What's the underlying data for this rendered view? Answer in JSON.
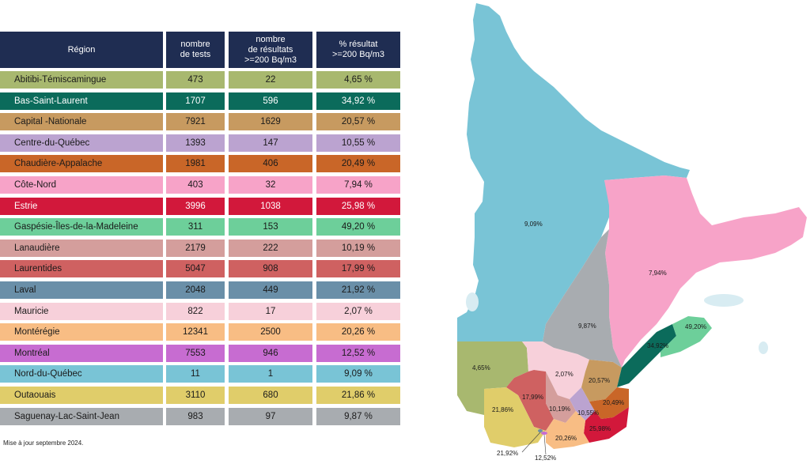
{
  "table": {
    "headers": [
      "Région",
      "nombre\nde tests",
      "nombre\nde résultats\n>=200 Bq/m3",
      "% résultat\n>=200 Bq/m3"
    ],
    "rows": [
      {
        "region": "Abitibi-Témiscamingue",
        "tests": "473",
        "results": "22",
        "pct": "4,65 %",
        "color": "#a8b86f"
      },
      {
        "region": "Bas-Saint-Laurent",
        "tests": "1707",
        "results": "596",
        "pct": "34,92 %",
        "color": "#0b6b5b",
        "light": true
      },
      {
        "region": "Capital -Nationale",
        "tests": "7921",
        "results": "1629",
        "pct": "20,57 %",
        "color": "#c79a60"
      },
      {
        "region": "Centre-du-Québec",
        "tests": "1393",
        "results": "147",
        "pct": "10,55 %",
        "color": "#bba3d0"
      },
      {
        "region": "Chaudière-Appalache",
        "tests": "1981",
        "results": "406",
        "pct": "20,49 %",
        "color": "#c96628"
      },
      {
        "region": "Côte-Nord",
        "tests": "403",
        "results": "32",
        "pct": "7,94 %",
        "color": "#f7a3c8"
      },
      {
        "region": "Estrie",
        "tests": "3996",
        "results": "1038",
        "pct": "25,98 %",
        "color": "#d2183b",
        "light": true
      },
      {
        "region": "Gaspésie-Îles-de-la-Madeleine",
        "tests": "311",
        "results": "153",
        "pct": "49,20 %",
        "color": "#6dcf9a"
      },
      {
        "region": "Lanaudière",
        "tests": "2179",
        "results": "222",
        "pct": "10,19 %",
        "color": "#d49e9c"
      },
      {
        "region": "Laurentides",
        "tests": "5047",
        "results": "908",
        "pct": "17,99 %",
        "color": "#cf6161"
      },
      {
        "region": "Laval",
        "tests": "2048",
        "results": "449",
        "pct": "21,92 %",
        "color": "#6a8fa8"
      },
      {
        "region": "Mauricie",
        "tests": "822",
        "results": "17",
        "pct": "2,07 %",
        "color": "#f7d0da"
      },
      {
        "region": "Montérégie",
        "tests": "12341",
        "results": "2500",
        "pct": "20,26 %",
        "color": "#f8bd84"
      },
      {
        "region": "Montréal",
        "tests": "7553",
        "results": "946",
        "pct": "12,52 %",
        "color": "#c76cd1"
      },
      {
        "region": "Nord-du-Québec",
        "tests": "11",
        "results": "1",
        "pct": "9,09 %",
        "color": "#79c4d6"
      },
      {
        "region": "Outaouais",
        "tests": "3110",
        "results": "680",
        "pct": "21,86 %",
        "color": "#e0cd6a"
      },
      {
        "region": "Saguenay-Lac-Saint-Jean",
        "tests": "983",
        "results": "97",
        "pct": "9,87 %",
        "color": "#a8acb0"
      }
    ]
  },
  "note": "Mise à jour septembre 2024.",
  "map_labels": {
    "nord": "9,09%",
    "cote_nord": "7,94%",
    "saguenay": "9,87%",
    "gaspesie": "49,20%",
    "bas_st_laurent": "34,92%",
    "abitibi": "4,65%",
    "mauricie": "2,07%",
    "capitale": "20,57%",
    "laurentides": "17,99%",
    "outaouais": "21,86%",
    "lanaudiere": "10,19%",
    "centre": "10,55%",
    "chaudiere": "20,49%",
    "estrie": "25,98%",
    "monteregie": "20,26%",
    "laval": "21,92%",
    "montreal": "12,52%"
  }
}
